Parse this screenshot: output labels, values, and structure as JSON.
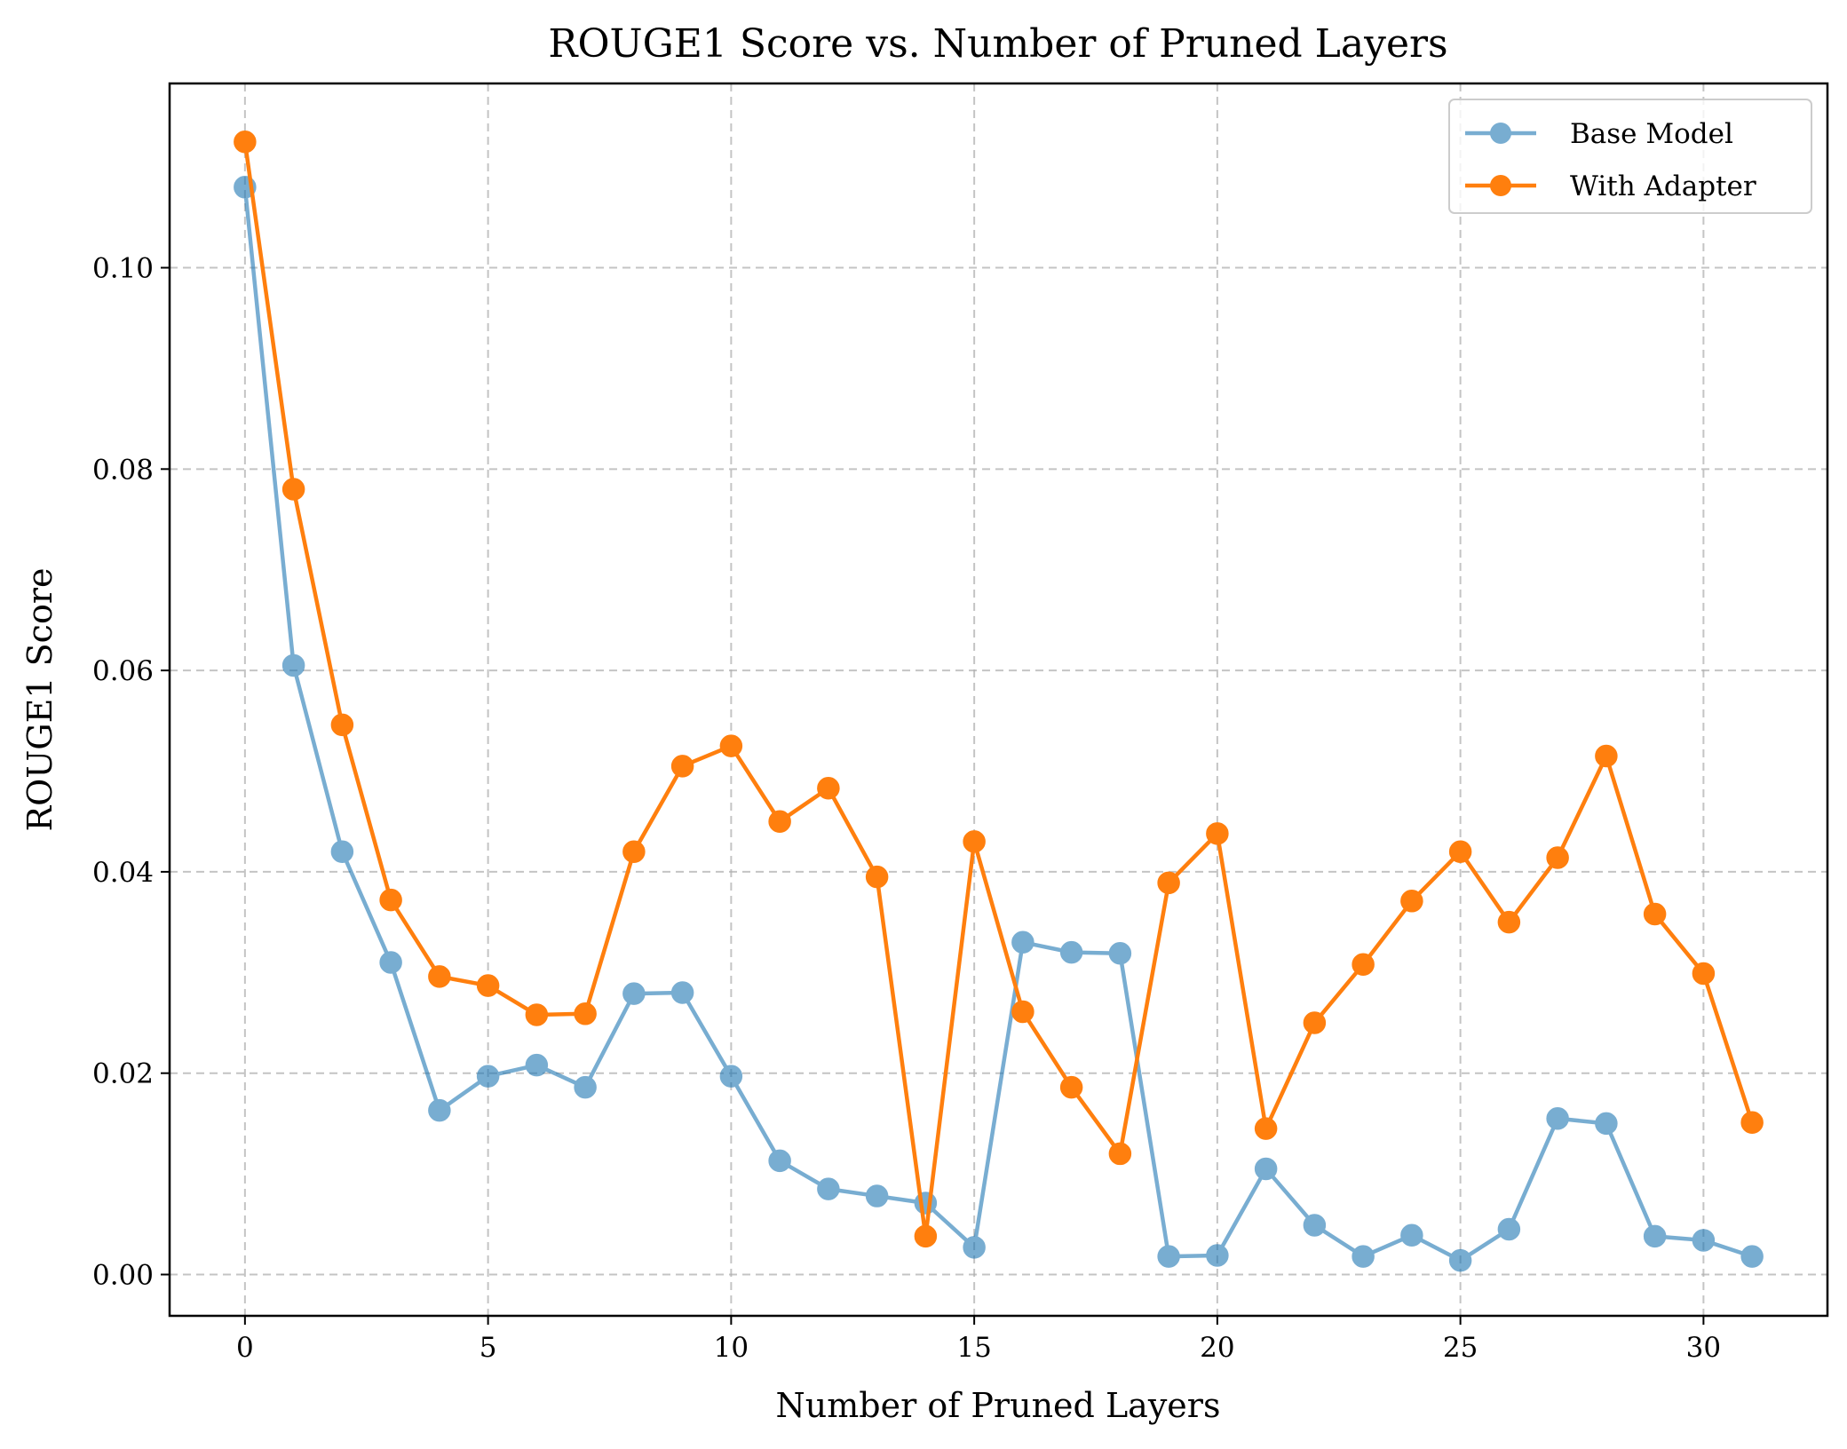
{
  "chart_data": {
    "type": "line",
    "title": "ROUGE1 Score vs. Number of Pruned Layers",
    "xlabel": "Number of Pruned Layers",
    "ylabel": "ROUGE1 Score",
    "x": [
      0,
      1,
      2,
      3,
      4,
      5,
      6,
      7,
      8,
      9,
      10,
      11,
      12,
      13,
      14,
      15,
      16,
      17,
      18,
      19,
      20,
      21,
      22,
      23,
      24,
      25,
      26,
      27,
      28,
      29,
      30,
      31
    ],
    "xlim": [
      -1.55,
      32.55
    ],
    "ylim": [
      -0.0041,
      0.1183
    ],
    "xticks": [
      0,
      5,
      10,
      15,
      20,
      25,
      30
    ],
    "xtick_labels": [
      "0",
      "5",
      "10",
      "15",
      "20",
      "25",
      "30"
    ],
    "yticks": [
      0.0,
      0.02,
      0.04,
      0.06,
      0.08,
      0.1
    ],
    "ytick_labels": [
      "0.00",
      "0.02",
      "0.04",
      "0.06",
      "0.08",
      "0.10"
    ],
    "grid": true,
    "legend_position": "top-right",
    "series": [
      {
        "name": "Base Model",
        "color": "#1f77b4",
        "alpha": 0.6,
        "marker": "circle",
        "values": [
          0.108,
          0.0605,
          0.042,
          0.031,
          0.0163,
          0.0197,
          0.0208,
          0.0186,
          0.0279,
          0.028,
          0.0197,
          0.0113,
          0.0085,
          0.0078,
          0.0071,
          0.0027,
          0.033,
          0.032,
          0.0319,
          0.0018,
          0.0019,
          0.0105,
          0.0049,
          0.0018,
          0.0039,
          0.0014,
          0.0045,
          0.0155,
          0.015,
          0.0038,
          0.0034,
          0.0018
        ]
      },
      {
        "name": "With Adapter",
        "color": "#ff7f0e",
        "alpha": 1.0,
        "marker": "circle",
        "values": [
          0.1125,
          0.078,
          0.0546,
          0.0372,
          0.0296,
          0.0287,
          0.0258,
          0.0259,
          0.042,
          0.0505,
          0.0525,
          0.045,
          0.0483,
          0.0395,
          0.0038,
          0.043,
          0.0261,
          0.0186,
          0.012,
          0.0389,
          0.0438,
          0.0145,
          0.025,
          0.0308,
          0.0371,
          0.042,
          0.035,
          0.0414,
          0.0515,
          0.0358,
          0.0299,
          0.0151
        ]
      }
    ]
  }
}
